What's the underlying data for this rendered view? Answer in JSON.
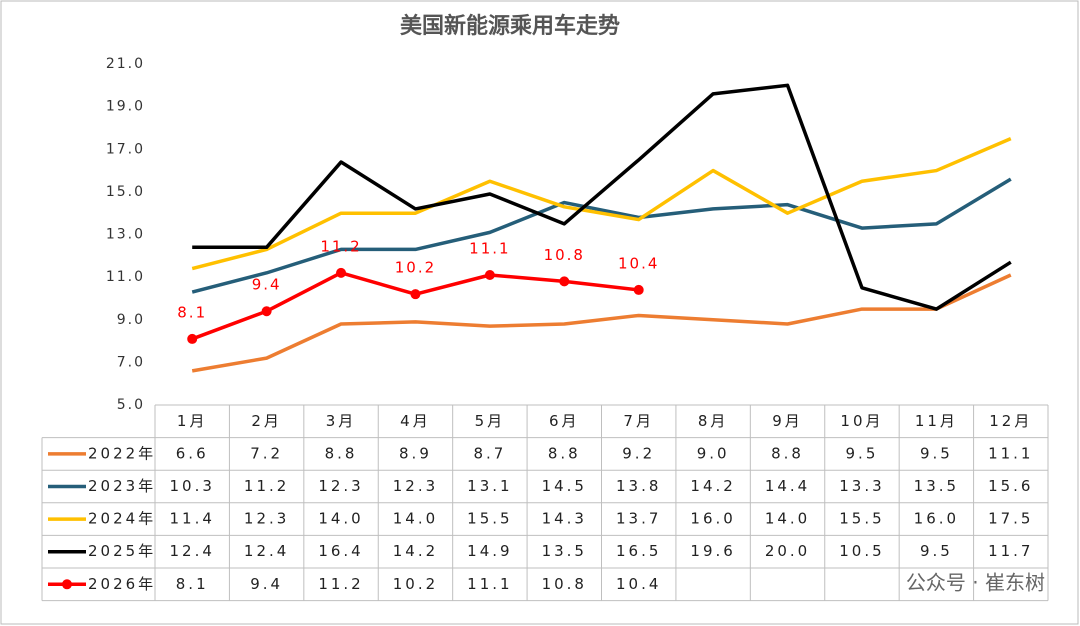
{
  "chart_data": {
    "type": "line",
    "title": "美国新能源乘用车走势",
    "categories": [
      "1月",
      "2月",
      "3月",
      "4月",
      "5月",
      "6月",
      "7月",
      "8月",
      "9月",
      "10月",
      "11月",
      "12月"
    ],
    "series": [
      {
        "name": "2022年",
        "color": "#ED7D31",
        "values": [
          6.6,
          7.2,
          8.8,
          8.9,
          8.7,
          8.8,
          9.2,
          9.0,
          8.8,
          9.5,
          9.5,
          11.1
        ],
        "value_labels": [
          "6.6",
          "7.2",
          "8.8",
          "8.9",
          "8.7",
          "8.8",
          "9.2",
          "9.0",
          "8.8",
          "9.5",
          "9.5",
          "11.1"
        ]
      },
      {
        "name": "2023年",
        "color": "#255E79",
        "values": [
          10.3,
          11.2,
          12.3,
          12.3,
          13.1,
          14.5,
          13.8,
          14.2,
          14.4,
          13.3,
          13.5,
          15.6
        ],
        "value_labels": [
          "10.3",
          "11.2",
          "12.3",
          "12.3",
          "13.1",
          "14.5",
          "13.8",
          "14.2",
          "14.4",
          "13.3",
          "13.5",
          "15.6"
        ]
      },
      {
        "name": "2024年",
        "color": "#FFC000",
        "values": [
          11.4,
          12.3,
          14.0,
          14.0,
          15.5,
          14.3,
          13.7,
          16.0,
          14.0,
          15.5,
          16.0,
          17.5
        ],
        "value_labels": [
          "11.4",
          "12.3",
          "14.0",
          "14.0",
          "15.5",
          "14.3",
          "13.7",
          "16.0",
          "14.0",
          "15.5",
          "16.0",
          "17.5"
        ]
      },
      {
        "name": "2025年",
        "color": "#000000",
        "values": [
          12.4,
          12.4,
          16.4,
          14.2,
          14.9,
          13.5,
          16.5,
          19.6,
          20.0,
          10.5,
          9.5,
          11.7
        ],
        "value_labels": [
          "12.4",
          "12.4",
          "16.4",
          "14.2",
          "14.9",
          "13.5",
          "16.5",
          "19.6",
          "20.0",
          "10.5",
          "9.5",
          "11.7"
        ]
      },
      {
        "name": "2026年",
        "color": "#FF0000",
        "markers": true,
        "data_labels": true,
        "values": [
          8.1,
          9.4,
          11.2,
          10.2,
          11.1,
          10.8,
          10.4,
          null,
          null,
          null,
          null,
          null
        ],
        "value_labels": [
          "8.1",
          "9.4",
          "11.2",
          "10.2",
          "11.1",
          "10.8",
          "10.4",
          null,
          null,
          null,
          null,
          null
        ]
      }
    ],
    "ylim": [
      5,
      21
    ],
    "yticks": [
      {
        "value": 5,
        "label": "5.0"
      },
      {
        "value": 7,
        "label": "7.0"
      },
      {
        "value": 9,
        "label": "9.0"
      },
      {
        "value": 11,
        "label": "11.0"
      },
      {
        "value": 13,
        "label": "13.0"
      },
      {
        "value": 15,
        "label": "15.0"
      },
      {
        "value": 17,
        "label": "17.0"
      },
      {
        "value": 19,
        "label": "19.0"
      },
      {
        "value": 21,
        "label": "21.0"
      }
    ],
    "grid": false,
    "watermark": "公众号 · 崔东树"
  }
}
